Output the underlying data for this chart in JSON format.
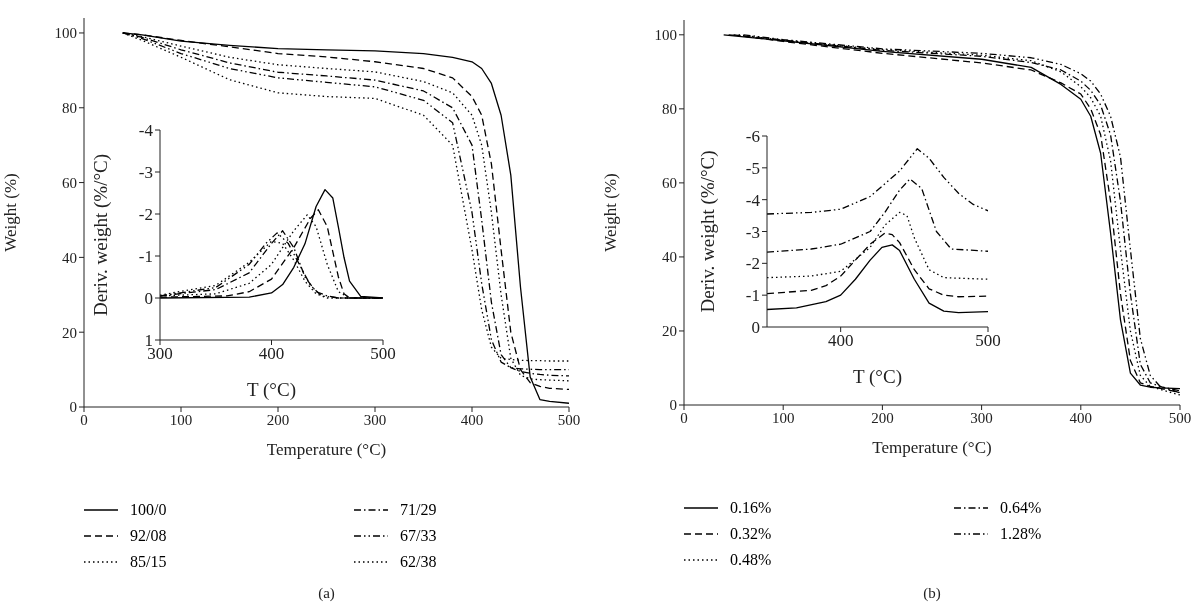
{
  "chart_data": [
    {
      "type": "line",
      "xlabel": "Temperature (°C)",
      "ylabel": "Weight (%)",
      "xlim": [
        0,
        500
      ],
      "xticks": [
        0,
        100,
        200,
        300,
        400,
        500
      ],
      "ylim": [
        0,
        104
      ],
      "yticks": [
        0,
        20,
        40,
        60,
        80,
        100
      ],
      "legend": "bottom",
      "annotations": [
        "(a)"
      ],
      "series": [
        {
          "name": "100/0",
          "color": "#000000",
          "line_style": "solid",
          "x": [
            40,
            60,
            100,
            150,
            200,
            250,
            300,
            350,
            380,
            400,
            410,
            420,
            430,
            440,
            450,
            460,
            470,
            480,
            500
          ],
          "values": [
            100,
            99.5,
            97.8,
            96.7,
            95.8,
            95.5,
            95.2,
            94.5,
            93.5,
            92.3,
            90.5,
            86.5,
            78,
            62,
            32,
            8,
            2,
            1.5,
            1
          ]
        },
        {
          "name": "92/08",
          "color": "#000000",
          "line_style": "dashed",
          "x": [
            40,
            60,
            100,
            150,
            200,
            250,
            300,
            350,
            380,
            400,
            410,
            420,
            430,
            440,
            450,
            460,
            470,
            480,
            500
          ],
          "values": [
            100,
            99.5,
            98,
            96.3,
            94.5,
            93.6,
            92.3,
            90.5,
            88,
            83,
            78,
            65,
            42,
            20,
            10,
            6.5,
            5.5,
            5,
            4.7
          ]
        },
        {
          "name": "85/15",
          "color": "#000000",
          "line_style": "dotted",
          "x": [
            40,
            60,
            100,
            150,
            200,
            250,
            300,
            350,
            380,
            400,
            410,
            420,
            430,
            440,
            450,
            460,
            470,
            480,
            500
          ],
          "values": [
            100,
            99,
            96.5,
            93.5,
            91.5,
            90.5,
            89.6,
            87,
            84,
            78,
            70,
            52,
            30,
            13,
            8.5,
            7.5,
            7.3,
            7.2,
            7
          ]
        },
        {
          "name": "71/29",
          "color": "#000000",
          "line_style": "dashdot",
          "x": [
            40,
            60,
            100,
            150,
            200,
            250,
            300,
            350,
            380,
            400,
            410,
            420,
            430,
            440,
            450,
            460,
            470,
            480,
            500
          ],
          "values": [
            100,
            98.8,
            95.5,
            92,
            89.5,
            88.5,
            87.4,
            84.5,
            80,
            70,
            50,
            28,
            14,
            10.5,
            9.5,
            9,
            8.7,
            8.5,
            8.3
          ]
        },
        {
          "name": "67/33",
          "color": "#000000",
          "line_style": "dashdotdot",
          "x": [
            40,
            60,
            100,
            150,
            200,
            250,
            300,
            350,
            380,
            400,
            410,
            420,
            430,
            440,
            450,
            460,
            470,
            480,
            500
          ],
          "values": [
            100,
            98.5,
            94.5,
            90.5,
            88,
            86.8,
            85.6,
            82,
            76,
            52,
            33,
            18,
            12,
            10.5,
            10.2,
            10.1,
            10,
            10,
            10
          ]
        },
        {
          "name": "62/38",
          "color": "#000000",
          "line_style": "dotted",
          "x": [
            40,
            60,
            100,
            150,
            200,
            250,
            300,
            350,
            380,
            400,
            410,
            420,
            430,
            440,
            450,
            460,
            470,
            480,
            500
          ],
          "values": [
            100,
            98,
            93.5,
            87.5,
            84,
            83,
            82.5,
            78,
            70,
            42,
            26,
            16,
            13,
            12.7,
            12.5,
            12.4,
            12.4,
            12.3,
            12.3
          ]
        }
      ]
    },
    {
      "type": "line",
      "xlabel": "T (°C)",
      "ylabel": "Deriv. weight (%/°C)",
      "xlim": [
        300,
        500
      ],
      "xticks": [
        300,
        400,
        500
      ],
      "ylim": [
        1,
        -4
      ],
      "yticks": [
        -4,
        -3,
        -2,
        -1,
        0,
        1
      ],
      "series": [
        {
          "color": "#000000",
          "line_style": "solid",
          "x": [
            300,
            380,
            400,
            410,
            420,
            430,
            440,
            448,
            455,
            460,
            465,
            470,
            480,
            500
          ],
          "values": [
            0,
            -0.02,
            -0.12,
            -0.32,
            -0.73,
            -1.29,
            -2.18,
            -2.58,
            -2.38,
            -1.69,
            -0.97,
            -0.4,
            -0.04,
            0
          ]
        },
        {
          "color": "#000000",
          "line_style": "dashed",
          "x": [
            300,
            360,
            380,
            400,
            420,
            435,
            442,
            450,
            460,
            465,
            470,
            500
          ],
          "values": [
            -0.02,
            -0.05,
            -0.15,
            -0.45,
            -1.2,
            -1.9,
            -2.1,
            -1.7,
            -0.5,
            -0.1,
            0,
            0
          ]
        },
        {
          "color": "#000000",
          "line_style": "dotted",
          "x": [
            300,
            350,
            380,
            400,
            420,
            432,
            440,
            450,
            460,
            470,
            500
          ],
          "values": [
            -0.05,
            -0.1,
            -0.35,
            -0.8,
            -1.6,
            -1.98,
            -1.7,
            -0.8,
            -0.15,
            0,
            0
          ]
        },
        {
          "color": "#000000",
          "line_style": "dashdot",
          "x": [
            300,
            350,
            380,
            400,
            410,
            420,
            430,
            440,
            450,
            460,
            500
          ],
          "values": [
            -0.05,
            -0.2,
            -0.6,
            -1.3,
            -1.6,
            -1.2,
            -0.5,
            -0.15,
            -0.05,
            0,
            0
          ]
        },
        {
          "color": "#000000",
          "line_style": "dashdotdot",
          "x": [
            300,
            350,
            380,
            395,
            405,
            415,
            425,
            435,
            445,
            460,
            500
          ],
          "values": [
            -0.05,
            -0.25,
            -0.8,
            -1.3,
            -1.55,
            -1.3,
            -0.8,
            -0.3,
            -0.05,
            0,
            0
          ]
        },
        {
          "color": "#000000",
          "line_style": "dotted",
          "x": [
            300,
            350,
            380,
            400,
            410,
            420,
            430,
            440,
            450,
            500
          ],
          "values": [
            -0.07,
            -0.3,
            -0.85,
            -1.35,
            -1.3,
            -0.9,
            -0.4,
            -0.1,
            0,
            0
          ]
        }
      ]
    },
    {
      "type": "line",
      "xlabel": "Temperature (°C)",
      "ylabel": "Weight (%)",
      "xlim": [
        0,
        500
      ],
      "xticks": [
        0,
        100,
        200,
        300,
        400,
        500
      ],
      "ylim": [
        0,
        104
      ],
      "yticks": [
        0,
        20,
        40,
        60,
        80,
        100
      ],
      "legend": "bottom",
      "annotations": [
        "(b)"
      ],
      "series": [
        {
          "name": "0.16%",
          "color": "#000000",
          "line_style": "solid",
          "x": [
            40,
            100,
            200,
            300,
            350,
            380,
            400,
            410,
            420,
            430,
            440,
            450,
            460,
            470,
            480,
            500
          ],
          "values": [
            100,
            98.4,
            95.5,
            93.4,
            91.2,
            86.6,
            82.6,
            78,
            68,
            46.5,
            23,
            8.6,
            5.4,
            4.8,
            4.6,
            4.4
          ]
        },
        {
          "name": "0.32%",
          "color": "#000000",
          "line_style": "dashed",
          "x": [
            50,
            100,
            200,
            300,
            350,
            380,
            400,
            410,
            420,
            430,
            440,
            450,
            460,
            470,
            480,
            500
          ],
          "values": [
            100,
            98.2,
            95,
            92.4,
            90.5,
            87,
            84,
            80,
            73,
            55,
            30,
            12,
            6,
            5,
            4.5,
            3.4
          ]
        },
        {
          "name": "0.48%",
          "color": "#000000",
          "line_style": "dotted",
          "x": [
            55,
            100,
            200,
            300,
            350,
            380,
            400,
            410,
            420,
            430,
            440,
            450,
            460,
            470,
            480,
            500
          ],
          "values": [
            100,
            98.5,
            96,
            94.5,
            93,
            90,
            86,
            83,
            78,
            66,
            42,
            20,
            8,
            5,
            4.2,
            2.7
          ]
        },
        {
          "name": "0.64%",
          "color": "#000000",
          "line_style": "dashdot",
          "x": [
            45,
            100,
            200,
            300,
            350,
            380,
            400,
            410,
            420,
            430,
            440,
            450,
            460,
            470,
            480,
            500
          ],
          "values": [
            100,
            98.6,
            95.8,
            94.2,
            92.5,
            90.5,
            87.5,
            85,
            81,
            73,
            55,
            30,
            11,
            6,
            5,
            3.3
          ]
        },
        {
          "name": "1.28%",
          "color": "#000000",
          "line_style": "dashdotdot",
          "x": [
            60,
            100,
            200,
            300,
            350,
            380,
            400,
            410,
            420,
            430,
            440,
            450,
            460,
            470,
            480,
            500
          ],
          "values": [
            100,
            98.7,
            96.2,
            95,
            93.8,
            92,
            89.5,
            87.5,
            84,
            78,
            67,
            42,
            18,
            8,
            5,
            3.8
          ]
        }
      ]
    },
    {
      "type": "line",
      "xlabel": "T (°C)",
      "ylabel": "Deriv. weight (%/°C)",
      "xlim": [
        350,
        500
      ],
      "xticks": [
        400,
        500
      ],
      "ylim": [
        0,
        -6
      ],
      "yticks": [
        0,
        -1,
        -2,
        -3,
        -4,
        -5,
        -6
      ],
      "series": [
        {
          "color": "#000000",
          "line_style": "solid",
          "x": [
            350,
            370,
            390,
            400,
            410,
            420,
            428,
            435,
            440,
            450,
            460,
            470,
            480,
            500
          ],
          "values": [
            -0.55,
            -0.6,
            -0.8,
            -1,
            -1.5,
            -2.1,
            -2.5,
            -2.58,
            -2.4,
            -1.5,
            -0.75,
            -0.5,
            -0.45,
            -0.48
          ]
        },
        {
          "color": "#000000",
          "line_style": "dashed",
          "x": [
            350,
            380,
            390,
            400,
            410,
            420,
            430,
            435,
            440,
            450,
            460,
            470,
            480,
            500
          ],
          "values": [
            -1.05,
            -1.15,
            -1.3,
            -1.6,
            -2.1,
            -2.6,
            -2.95,
            -2.9,
            -2.65,
            -1.8,
            -1.2,
            -1,
            -0.95,
            -0.97
          ]
        },
        {
          "color": "#000000",
          "line_style": "dotted",
          "x": [
            350,
            380,
            400,
            420,
            430,
            440,
            445,
            450,
            460,
            470,
            500
          ],
          "values": [
            -1.55,
            -1.6,
            -1.75,
            -2.5,
            -3.2,
            -3.6,
            -3.5,
            -2.8,
            -1.8,
            -1.55,
            -1.5
          ]
        },
        {
          "color": "#000000",
          "line_style": "dashdot",
          "x": [
            350,
            380,
            400,
            420,
            430,
            440,
            447,
            455,
            465,
            475,
            500
          ],
          "values": [
            -2.35,
            -2.45,
            -2.6,
            -3,
            -3.6,
            -4.3,
            -4.65,
            -4.35,
            -3,
            -2.45,
            -2.38
          ]
        },
        {
          "color": "#000000",
          "line_style": "dashdotdot",
          "x": [
            350,
            380,
            400,
            420,
            440,
            452,
            460,
            470,
            480,
            490,
            500
          ],
          "values": [
            -3.55,
            -3.6,
            -3.7,
            -4.1,
            -4.9,
            -5.6,
            -5.3,
            -4.7,
            -4.2,
            -3.85,
            -3.65
          ]
        }
      ]
    }
  ]
}
